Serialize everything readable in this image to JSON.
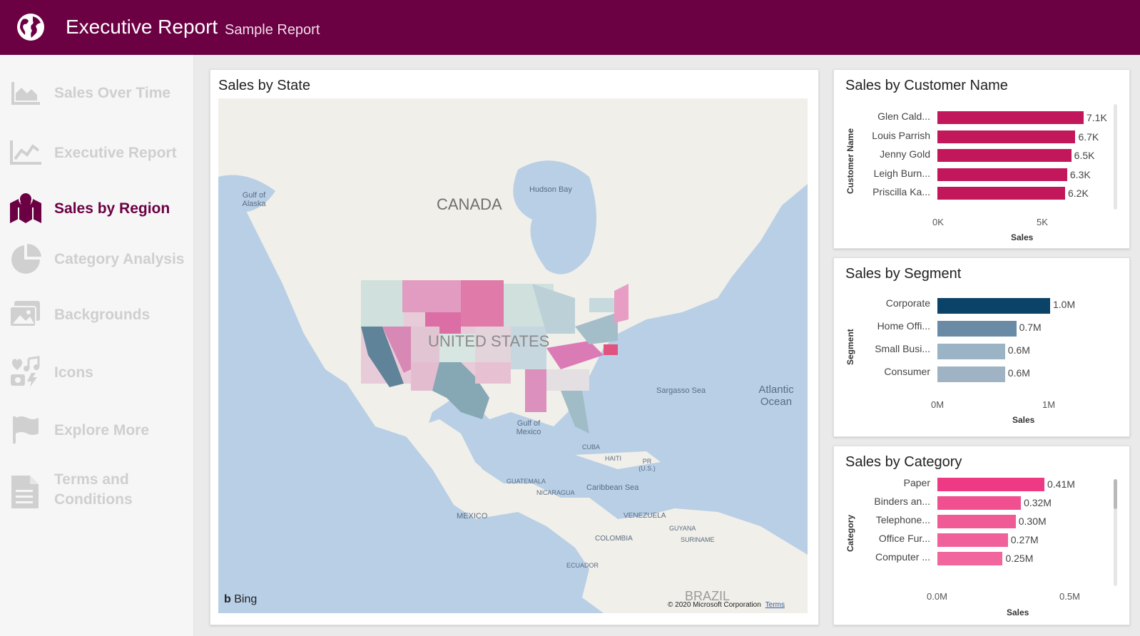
{
  "header": {
    "title": "Executive Report",
    "subtitle": "Sample Report",
    "bg_color": "#6b0043",
    "icon": "globe-icon"
  },
  "sidebar": {
    "items": [
      {
        "label": "Sales Over Time",
        "icon": "area-chart-icon",
        "active": false
      },
      {
        "label": "Executive Report",
        "icon": "line-chart-icon",
        "active": false
      },
      {
        "label": "Sales by Region",
        "icon": "map-pin-icon",
        "active": true
      },
      {
        "label": "Category Analysis",
        "icon": "pie-chart-icon",
        "active": false
      },
      {
        "label": "Backgrounds",
        "icon": "image-icon",
        "active": false
      },
      {
        "label": "Icons",
        "icon": "icons-collage-icon",
        "active": false
      },
      {
        "label": "Explore More",
        "icon": "flag-icon",
        "active": false
      },
      {
        "label": "Terms and Conditions",
        "icon": "document-icon",
        "active": false
      }
    ]
  },
  "map_card": {
    "title": "Sales by State",
    "labels": {
      "canada": "CANADA",
      "united_states": "UNITED STATES",
      "mexico": "MEXICO",
      "hudson_bay": "Hudson Bay",
      "gulf_alaska": "Gulf of Alaska",
      "sargasso": "Sargasso Sea",
      "atlantic": "Atlantic Ocean",
      "gulf_mexico": "Gulf of Mexico",
      "cuba": "CUBA",
      "haiti": "HAITI",
      "pr": "PR (U.S.)",
      "guatemala": "GUATEMALA",
      "nicaragua": "NICARAGUA",
      "caribbean": "Caribbean Sea",
      "venezuela": "VENEZUELA",
      "guyana": "GUYANA",
      "suriname": "SURINAME",
      "colombia": "COLOMBIA",
      "ecuador": "ECUADOR",
      "brazil": "BRAZIL"
    },
    "bing": "Bing",
    "copyright": "© 2020 Microsoft Corporation",
    "terms": "Terms"
  },
  "customer_card": {
    "title": "Sales by Customer Name",
    "y_axis_title": "Customer Name",
    "x_axis_title": "Sales",
    "x_ticks": [
      "0K",
      "5K"
    ]
  },
  "segment_card": {
    "title": "Sales by Segment",
    "y_axis_title": "Segment",
    "x_axis_title": "Sales",
    "x_ticks": [
      "0M",
      "1M"
    ]
  },
  "category_card": {
    "title": "Sales by Category",
    "y_axis_title": "Category",
    "x_axis_title": "Sales",
    "x_ticks": [
      "0.0M",
      "0.5M"
    ]
  },
  "chart_data": [
    {
      "type": "bar",
      "orientation": "horizontal",
      "title": "Sales by Customer Name",
      "xlabel": "Sales",
      "ylabel": "Customer Name",
      "categories": [
        "Glen Cald...",
        "Louis Parrish",
        "Jenny Gold",
        "Leigh Burn...",
        "Priscilla Ka..."
      ],
      "values": [
        7100,
        6700,
        6500,
        6300,
        6200
      ],
      "data_labels": [
        "7.1K",
        "6.7K",
        "6.5K",
        "6.3K",
        "6.2K"
      ],
      "xlim": [
        0,
        7100
      ],
      "color": "#c2185b"
    },
    {
      "type": "bar",
      "orientation": "horizontal",
      "title": "Sales by Segment",
      "xlabel": "Sales",
      "ylabel": "Segment",
      "categories": [
        "Corporate",
        "Home Offi...",
        "Small Busi...",
        "Consumer"
      ],
      "values": [
        1.0,
        0.7,
        0.6,
        0.6
      ],
      "data_labels": [
        "1.0M",
        "0.7M",
        "0.6M",
        "0.6M"
      ],
      "xlim": [
        0,
        1.0
      ],
      "colors": [
        "#0b4368",
        "#6a8ba5",
        "#9ab4c6",
        "#9fb3c4"
      ]
    },
    {
      "type": "bar",
      "orientation": "horizontal",
      "title": "Sales by Category",
      "xlabel": "Sales",
      "ylabel": "Category",
      "categories": [
        "Paper",
        "Binders an...",
        "Telephone...",
        "Office Fur...",
        "Computer ..."
      ],
      "values": [
        0.41,
        0.32,
        0.3,
        0.27,
        0.25
      ],
      "data_labels": [
        "0.41M",
        "0.32M",
        "0.30M",
        "0.27M",
        "0.25M"
      ],
      "xlim": [
        0,
        0.41
      ],
      "colors": [
        "#ee3a84",
        "#f0508f",
        "#f05a95",
        "#f0609a",
        "#f0669d"
      ]
    }
  ]
}
